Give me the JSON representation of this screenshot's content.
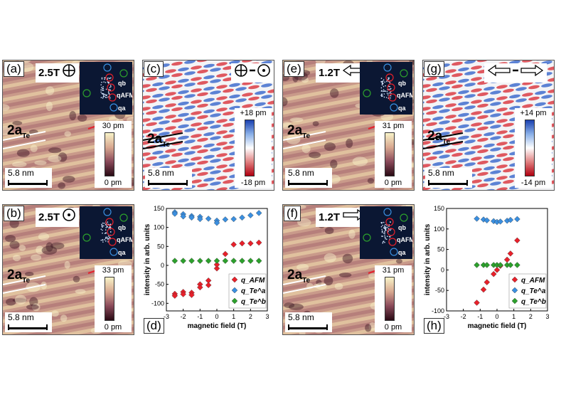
{
  "panels": {
    "a": {
      "label": "(a)",
      "field": "2.5T",
      "scale": "5.8 nm",
      "cmax": "30 pm",
      "cmin": "0 pm",
      "lattice": "2a",
      "sub": "Te",
      "fft": true,
      "dir": "in"
    },
    "b": {
      "label": "(b)",
      "field": "2.5T",
      "scale": "5.8 nm",
      "cmax": "33 pm",
      "cmin": "0 pm",
      "lattice": "2a",
      "sub": "Te",
      "fft": true,
      "dir": "out"
    },
    "c": {
      "label": "(c)",
      "field": "",
      "scale": "5.8 nm",
      "cmax": "+18 pm",
      "cmin": "-18 pm",
      "lattice": "2a",
      "sub": "Te",
      "fft": false,
      "dir": "diffz"
    },
    "e": {
      "label": "(e)",
      "field": "1.2T",
      "scale": "5.8 nm",
      "cmax": "31 pm",
      "cmin": "0 pm",
      "lattice": "2a",
      "sub": "Te",
      "fft": true,
      "dir": "left"
    },
    "f": {
      "label": "(f)",
      "field": "1.2T",
      "scale": "5.8 nm",
      "cmax": "31 pm",
      "cmin": "0 pm",
      "lattice": "2a",
      "sub": "Te",
      "fft": true,
      "dir": "right"
    },
    "g": {
      "label": "(g)",
      "field": "",
      "scale": "5.8 nm",
      "cmax": "+14 pm",
      "cmin": "-14 pm",
      "lattice": "2a",
      "sub": "Te",
      "fft": false,
      "dir": "diffx"
    }
  },
  "fft_labels": {
    "qb": "q",
    "qb_sup": "b",
    "qb_sub": "Te",
    "qafm": "q",
    "qafm_sub": "AFM",
    "qa": "q",
    "qa_sup": "a",
    "qa_sub": "Te"
  },
  "colors": {
    "afm": "#e8202a",
    "qa": "#3a8fe0",
    "qb": "#2ca02c"
  },
  "chart_data": [
    {
      "panel": "(d)",
      "type": "scatter",
      "xlabel": "magnetic field (T)",
      "ylabel": "intensity in arb. units",
      "xlim": [
        -3,
        3
      ],
      "ylim": [
        -120,
        150
      ],
      "xticks": [
        -3,
        -2,
        -1,
        0,
        1,
        2,
        3
      ],
      "yticks": [
        -100,
        -50,
        0,
        50,
        100,
        150
      ],
      "legend": [
        "q_AFM",
        "q_Te^a",
        "q_Te^b"
      ],
      "series": [
        {
          "name": "q_AFM",
          "x": [
            -2.5,
            -2.5,
            -2.0,
            -2.0,
            -1.5,
            -1.5,
            -1.0,
            -1.0,
            -0.5,
            -0.5,
            0,
            0,
            0.5,
            1.0,
            1.5,
            2.0,
            2.5
          ],
          "y": [
            -75,
            -80,
            -70,
            -76,
            -72,
            -78,
            -50,
            -58,
            -40,
            -52,
            -8,
            2,
            30,
            55,
            58,
            58,
            60
          ]
        },
        {
          "name": "q_Te^a",
          "x": [
            -2.5,
            -2.5,
            -2.0,
            -2.0,
            -1.5,
            -1.5,
            -1.0,
            -1.0,
            -0.5,
            0,
            0,
            0.5,
            1.0,
            1.5,
            2.0,
            2.5
          ],
          "y": [
            140,
            136,
            135,
            129,
            130,
            126,
            128,
            122,
            123,
            118,
            112,
            121,
            122,
            126,
            132,
            138
          ]
        },
        {
          "name": "q_Te^b",
          "x": [
            -2.5,
            -2.0,
            -1.5,
            -1.0,
            -0.5,
            0,
            0.5,
            1.0,
            1.5,
            2.0,
            2.5
          ],
          "y": [
            12,
            12,
            12,
            12,
            12,
            12,
            12,
            12,
            12,
            12,
            12
          ]
        }
      ]
    },
    {
      "panel": "(h)",
      "type": "scatter",
      "xlabel": "magnetic field (T)",
      "ylabel": "intensity in arb. units",
      "xlim": [
        -3,
        3
      ],
      "ylim": [
        -100,
        150
      ],
      "xticks": [
        -3,
        -2,
        -1,
        0,
        1,
        2,
        3
      ],
      "yticks": [
        -100,
        -50,
        0,
        50,
        100,
        150
      ],
      "legend": [
        "q_AFM",
        "q_Te^a",
        "q_Te^b"
      ],
      "series": [
        {
          "name": "q_AFM",
          "x": [
            -1.2,
            -0.8,
            -0.6,
            -0.2,
            0,
            0.2,
            0.6,
            0.8,
            1.2
          ],
          "y": [
            -80,
            -48,
            -30,
            -10,
            0,
            10,
            25,
            40,
            72
          ]
        },
        {
          "name": "q_Te^a",
          "x": [
            -1.2,
            -0.8,
            -0.6,
            -0.2,
            0,
            0.2,
            0.6,
            0.8,
            1.2
          ],
          "y": [
            125,
            123,
            121,
            119,
            117,
            118,
            120,
            122,
            124
          ]
        },
        {
          "name": "q_Te^b",
          "x": [
            -1.2,
            -0.8,
            -0.6,
            -0.2,
            0,
            0.2,
            0.6,
            0.8,
            1.2
          ],
          "y": [
            12,
            12,
            12,
            12,
            12,
            12,
            12,
            12,
            12
          ]
        }
      ]
    }
  ]
}
